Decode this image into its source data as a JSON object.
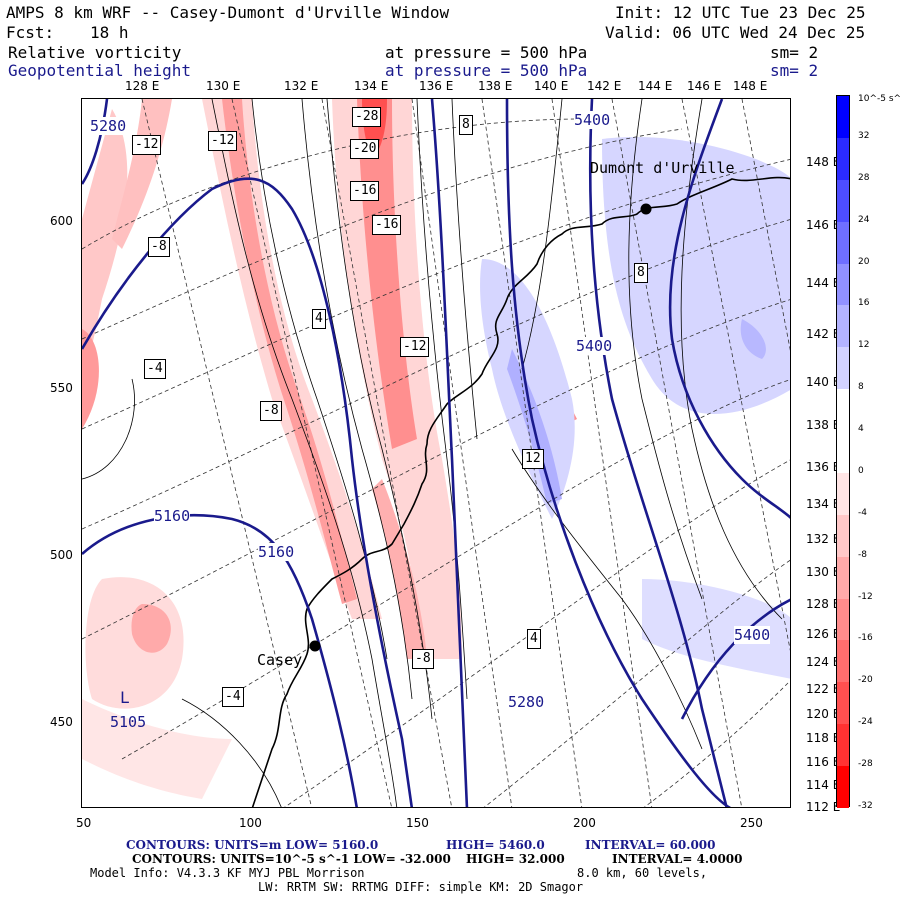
{
  "header": {
    "title": "AMPS 8 km WRF -- Casey-Dumont d'Urville Window",
    "fcst_label": "Fcst:",
    "fcst_value": "18 h",
    "init": "Init: 12 UTC Tue 23 Dec 25",
    "valid": "Valid: 06 UTC Wed 24 Dec 25"
  },
  "fields": [
    {
      "name": "Relative vorticity",
      "level": "at pressure =  500 hPa",
      "smooth": "sm= 2",
      "color": "#000000"
    },
    {
      "name": "Geopotential height",
      "level": "at pressure =  500 hPa",
      "smooth": "sm= 2",
      "color": "#1a1a8c"
    }
  ],
  "axes": {
    "x_ticks": [
      "50",
      "100",
      "150",
      "200",
      "250"
    ],
    "y_ticks": [
      "600",
      "550",
      "500",
      "450"
    ],
    "top_lon_labels": [
      "128 E",
      "130 E",
      "132 E",
      "134 E",
      "136 E",
      "138 E",
      "140 E",
      "142 E",
      "144 E",
      "146 E",
      "148 E"
    ],
    "right_lon_labels": [
      "148 E",
      "146 E",
      "144 E",
      "142 E",
      "140 E",
      "138 E",
      "136 E",
      "134 E",
      "132 E",
      "130 E",
      "128 E",
      "126 E",
      "124 E",
      "122 E",
      "120 E",
      "118 E",
      "116 E",
      "114 E",
      "112 E"
    ]
  },
  "map": {
    "stations": [
      "Dumont d'Urville",
      "Casey"
    ],
    "height_labels": [
      "5280",
      "5400",
      "5400",
      "5160",
      "5160",
      "5280",
      "5400",
      "5105"
    ],
    "low_marker": "L",
    "vort_labels": [
      "-28",
      "-20",
      "-16",
      "-16",
      "-12",
      "-12",
      "-12",
      "-8",
      "-8",
      "-8",
      "-4",
      "-4",
      "4",
      "4",
      "8",
      "8",
      "12"
    ]
  },
  "colorbar": {
    "unit_label": "10^-5 s^-1",
    "levels": [
      "32",
      "28",
      "24",
      "20",
      "16",
      "12",
      "8",
      "4",
      "0",
      "-4",
      "-8",
      "-12",
      "-16",
      "-20",
      "-24",
      "-28",
      "-32"
    ],
    "colors": [
      "#0000ff",
      "#2b2bff",
      "#4d4dff",
      "#6f6fff",
      "#9191ff",
      "#b3b3ff",
      "#d2d2ff",
      "#ffffff",
      "#ffffff",
      "#ffe5e5",
      "#ffc8c8",
      "#ffaaaa",
      "#ff8c8c",
      "#ff6e6e",
      "#ff5050",
      "#ff3232",
      "#ff0000"
    ]
  },
  "footer": {
    "contours1_a": "CONTOURS:  UNITS=m  LOW=  5160.0",
    "contours1_b": "HIGH=  5460.0",
    "contours1_c": "INTERVAL=   60.000",
    "contours2_a": "CONTOURS:  UNITS=10^-5 s^-1  LOW= -32.000",
    "contours2_b": "HIGH=  32.000",
    "contours2_c": "INTERVAL=  4.0000",
    "model_info_a": "Model Info: V4.3.3    KF      MYJ PBL  Morrison",
    "model_info_b": "8.0 km,  60 levels,",
    "model_info_c": "LW: RRTM SW: RRTMG    DIFF: simple KM: 2D Smagor"
  }
}
